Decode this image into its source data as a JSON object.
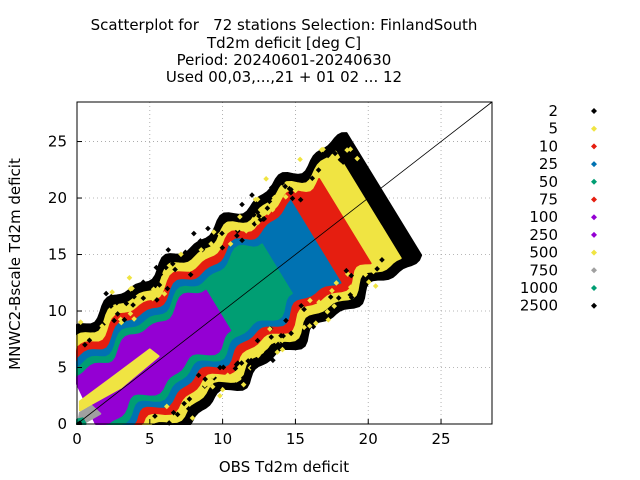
{
  "chart_data": {
    "type": "scatter",
    "title_lines": [
      "Scatterplot for   72 stations Selection: FinlandSouth",
      "Td2m deficit [deg C]",
      "Period: 20240601-20240630",
      "Used 00,03,...,21 + 01 02 ... 12"
    ],
    "xlabel": "OBS Td2m deficit",
    "ylabel": "MNWC2-Bscale Td2m deficit",
    "xlim": [
      0,
      28.5
    ],
    "ylim": [
      0,
      28.5
    ],
    "xticks": [
      "0",
      "5",
      "10",
      "15",
      "20",
      "25"
    ],
    "yticks": [
      "0",
      "5",
      "10",
      "15",
      "20",
      "25"
    ],
    "grid": true,
    "diagonal_line": true,
    "legend_position": "right",
    "legend": [
      {
        "label": "2",
        "color": "#000000"
      },
      {
        "label": "5",
        "color": "#f0e442"
      },
      {
        "label": "10",
        "color": "#e51e10"
      },
      {
        "label": "25",
        "color": "#0072b2"
      },
      {
        "label": "50",
        "color": "#009e73"
      },
      {
        "label": "75",
        "color": "#e51e10"
      },
      {
        "label": "100",
        "color": "#9400d3"
      },
      {
        "label": "250",
        "color": "#9400d3"
      },
      {
        "label": "500",
        "color": "#f0e442"
      },
      {
        "label": "750",
        "color": "#a0a0a0"
      },
      {
        "label": "1000",
        "color": "#009e73"
      },
      {
        "label": "2500",
        "color": "#000000"
      }
    ]
  }
}
